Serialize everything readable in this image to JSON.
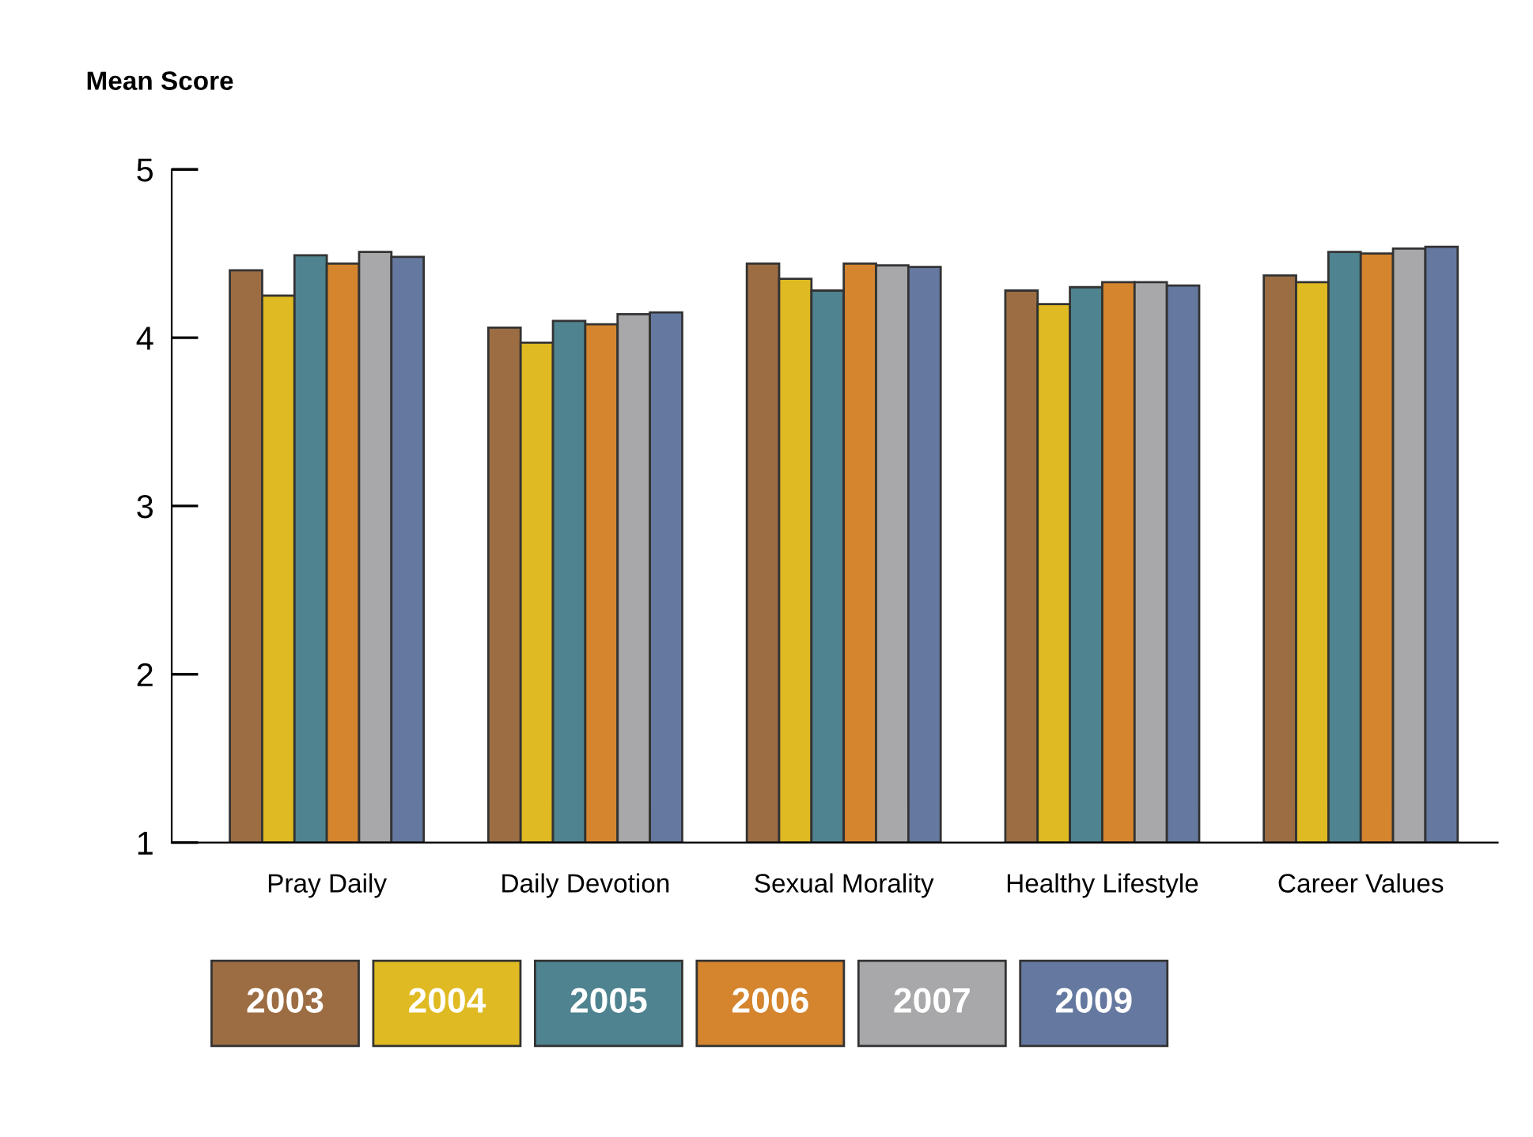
{
  "chart_data": {
    "type": "bar",
    "ylabel": "Mean Score",
    "categories": [
      "Pray Daily",
      "Daily Devotion",
      "Sexual Morality",
      "Healthy Lifestyle",
      "Career Values"
    ],
    "series": [
      {
        "name": "2003",
        "color": "#9c6d43",
        "values": [
          4.4,
          4.06,
          4.44,
          4.28,
          4.37
        ]
      },
      {
        "name": "2004",
        "color": "#dfba22",
        "values": [
          4.25,
          3.97,
          4.35,
          4.2,
          4.33
        ]
      },
      {
        "name": "2005",
        "color": "#4e838f",
        "values": [
          4.49,
          4.1,
          4.28,
          4.3,
          4.51
        ]
      },
      {
        "name": "2006",
        "color": "#d4852e",
        "values": [
          4.44,
          4.08,
          4.44,
          4.33,
          4.5
        ]
      },
      {
        "name": "2007",
        "color": "#a8a8aa",
        "values": [
          4.51,
          4.14,
          4.43,
          4.33,
          4.53
        ]
      },
      {
        "name": "2009",
        "color": "#65789f",
        "values": [
          4.48,
          4.15,
          4.42,
          4.31,
          4.54
        ]
      }
    ],
    "ylim": [
      1,
      5
    ],
    "yticks": [
      1,
      2,
      3,
      4,
      5
    ],
    "grid": false,
    "legend": "bottom"
  }
}
